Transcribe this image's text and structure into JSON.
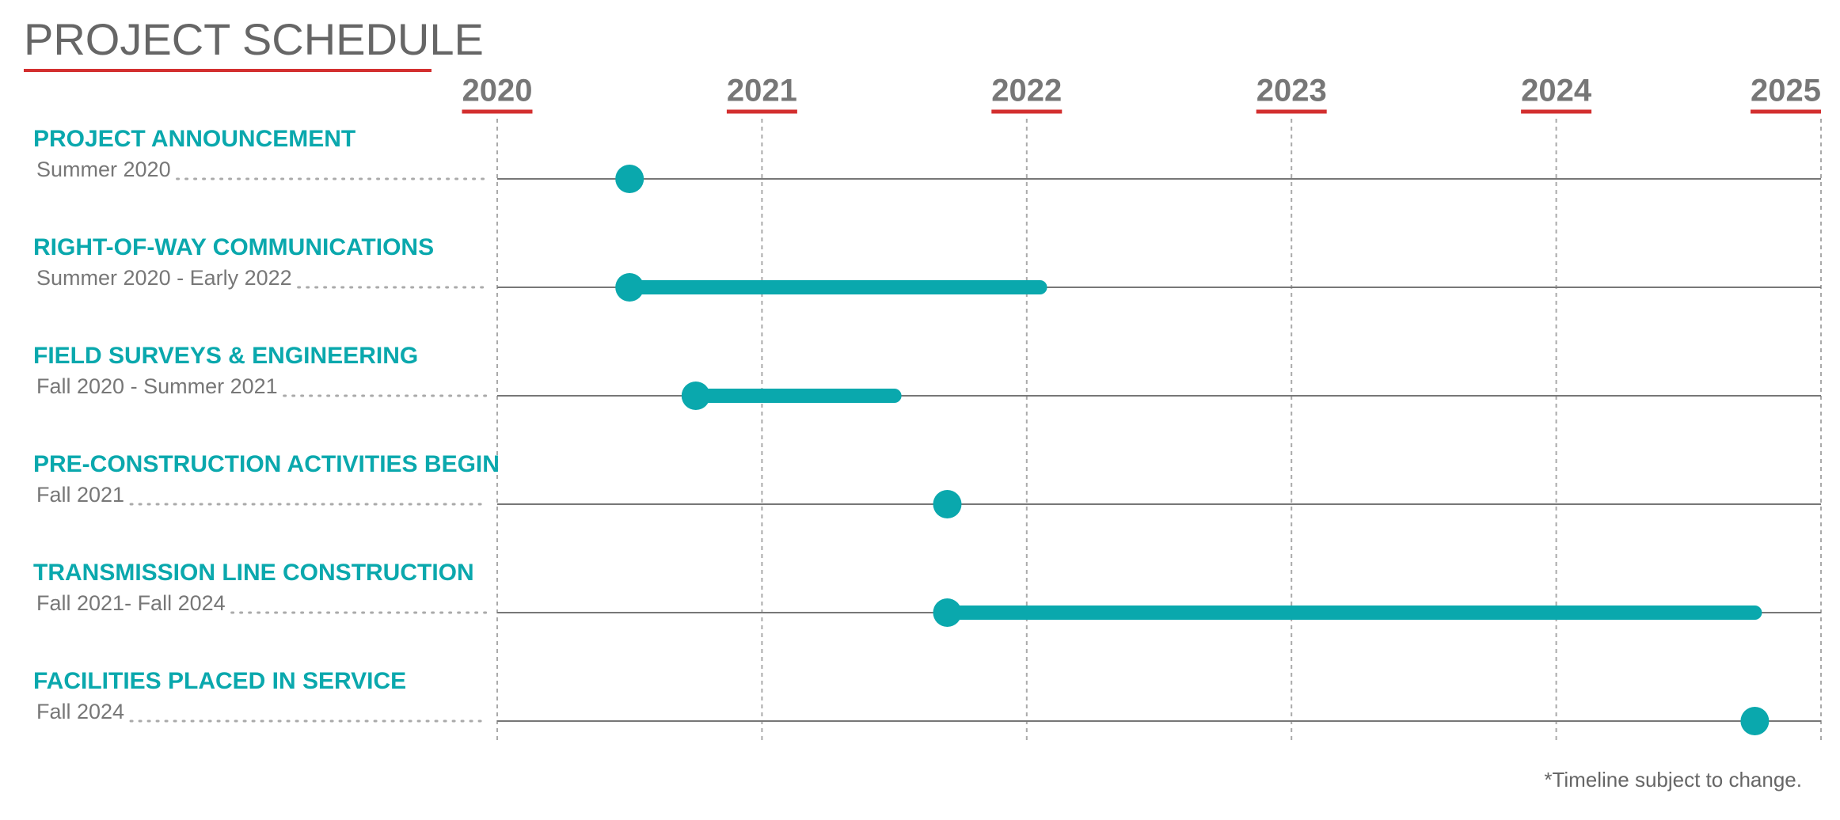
{
  "chart_data": {
    "type": "timeline",
    "title": "PROJECT SCHEDULE",
    "categories": [
      "PROJECT ANNOUNCEMENT",
      "RIGHT-OF-WAY COMMUNICATIONS",
      "FIELD SURVEYS & ENGINEERING",
      "PRE-CONSTRUCTION ACTIVITIES BEGIN",
      "TRANSMISSION LINE CONSTRUCTION",
      "FACILITIES PLACED IN SERVICE"
    ],
    "periods": [
      "Summer 2020",
      "Summer 2020 - Early 2022",
      "Fall 2020 - Summer 2021",
      "Fall 2021",
      "Fall 2021- Fall 2024",
      "Fall 2024"
    ],
    "start": [
      2020.5,
      2020.5,
      2020.75,
      2021.7,
      2021.7,
      2024.75
    ],
    "end": [
      null,
      2022.05,
      2021.5,
      null,
      2024.75,
      null
    ],
    "color": "#0aa8ad",
    "xlim": [
      2020,
      2025
    ],
    "xticks": [
      2020,
      2021,
      2022,
      2023,
      2024,
      2025
    ],
    "grid": true,
    "footnote": "*Timeline subject to change."
  }
}
